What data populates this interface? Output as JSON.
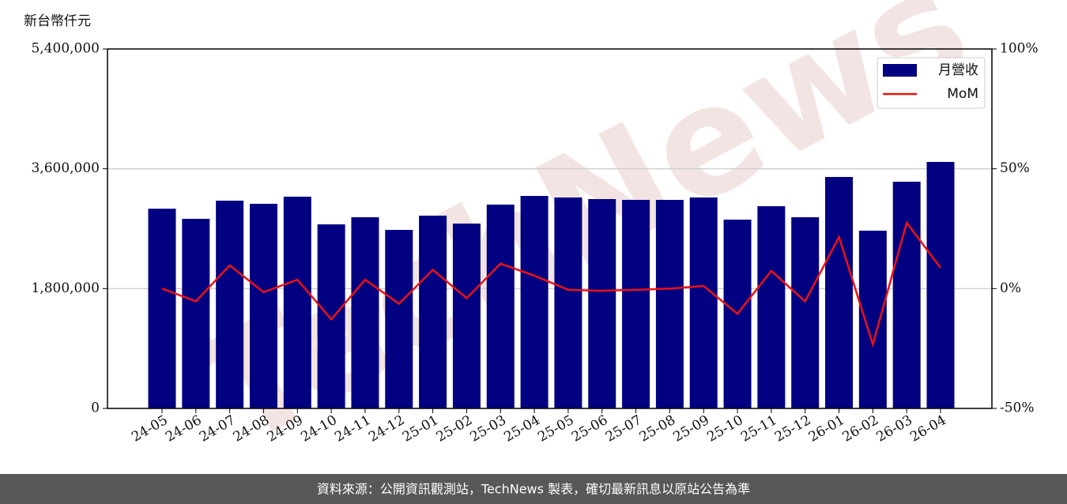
{
  "chart_data": {
    "type": "bar_line",
    "y_label": "新台幣仟元",
    "watermark": "TechNews",
    "footer": "資料來源：公開資訊觀測站，TechNews 製表，確切最新訊息以原站公告為準",
    "categories": [
      "24-05",
      "24-06",
      "24-07",
      "24-08",
      "24-09",
      "24-10",
      "24-11",
      "24-12",
      "25-01",
      "25-02",
      "25-03",
      "25-04",
      "25-05",
      "25-06",
      "25-07",
      "25-08",
      "25-09",
      "25-10",
      "25-11",
      "25-12",
      "26-01",
      "26-02",
      "26-03",
      "26-04"
    ],
    "series": [
      {
        "name": "月營收",
        "color": "#000080",
        "type": "bar",
        "values": [
          3000000,
          2848000,
          3121000,
          3074000,
          3181000,
          2765000,
          2872000,
          2682000,
          2896000,
          2777000,
          3062000,
          3192000,
          3169000,
          3145000,
          3133000,
          3133000,
          3169000,
          2836000,
          3038000,
          2872000,
          3477000,
          2670000,
          3406000,
          3703000
        ]
      },
      {
        "name": "MoM",
        "color": "#ee1111",
        "type": "line",
        "axis": "y2",
        "values": [
          0,
          -5.3,
          9.7,
          -1.5,
          3.7,
          -12.8,
          3.7,
          -6.3,
          7.8,
          -4.0,
          10.4,
          5.4,
          -0.5,
          -0.9,
          -0.5,
          0,
          1.1,
          -10.5,
          7.4,
          -5.3,
          21.5,
          -23.3,
          27.5,
          8.7
        ]
      }
    ],
    "ylim": [
      0,
      5400000
    ],
    "yticks": [
      0,
      {
        "value": 1800000,
        "label": "1,800,000"
      },
      {
        "value": 3600000,
        "label": "3,600,000"
      },
      {
        "value": 5400000,
        "label": "5,400,000"
      }
    ],
    "y2lim": [
      -50,
      100
    ],
    "y2ticks": [
      {
        "value": -50,
        "label": "-50%"
      },
      {
        "value": 0,
        "label": "0%"
      },
      {
        "value": 50,
        "label": "50%"
      },
      {
        "value": 100,
        "label": "100%"
      }
    ],
    "grid": true,
    "legend": "upper right"
  }
}
